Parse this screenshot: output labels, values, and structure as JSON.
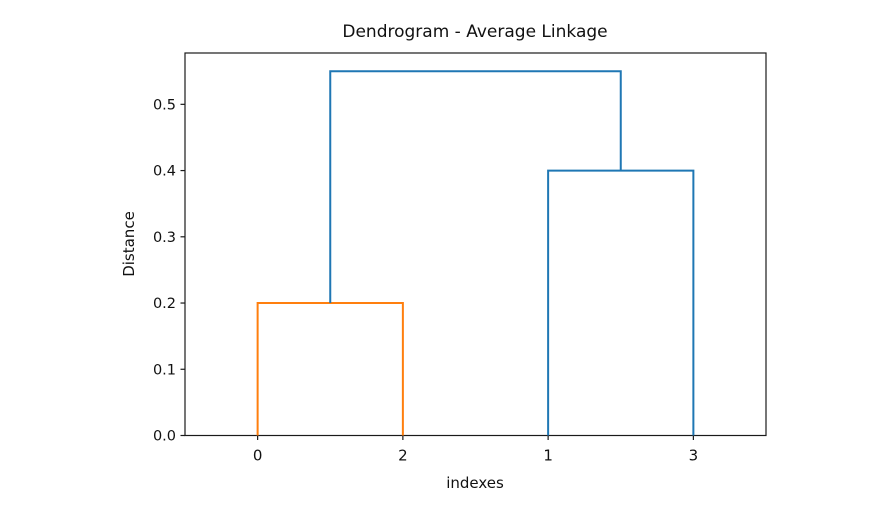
{
  "figure": {
    "background": "#ffffff"
  },
  "chart_data": {
    "type": "dendrogram",
    "title": "Dendrogram - Average Linkage",
    "xlabel": "indexes",
    "ylabel": "Distance",
    "xlim": [
      0,
      40
    ],
    "ylim": [
      0,
      0.5775
    ],
    "grid": false,
    "legend": null,
    "yticks": {
      "values": [
        0.0,
        0.1,
        0.2,
        0.3,
        0.4,
        0.5
      ],
      "labels": [
        "0.0",
        "0.1",
        "0.2",
        "0.3",
        "0.4",
        "0.5"
      ]
    },
    "leaves": [
      {
        "label": "0",
        "x": 5
      },
      {
        "label": "2",
        "x": 15
      },
      {
        "label": "1",
        "x": 25
      },
      {
        "label": "3",
        "x": 35
      }
    ],
    "links": [
      {
        "name": "cluster-0-2",
        "color": "#ff7f0e",
        "x1": 5,
        "h1": 0.0,
        "x2": 15,
        "h2": 0.0,
        "height": 0.2
      },
      {
        "name": "cluster-1-3",
        "color": "#1f77b4",
        "x1": 25,
        "h1": 0.0,
        "x2": 35,
        "h2": 0.0,
        "height": 0.4
      },
      {
        "name": "root-link",
        "color": "#1f77b4",
        "x1": 10,
        "h1": 0.2,
        "x2": 30,
        "h2": 0.4,
        "height": 0.55
      }
    ],
    "colors": {
      "cluster_orange": "#ff7f0e",
      "cluster_blue": "#1f77b4",
      "spine": "#1a1a1a",
      "text": "#111111"
    }
  }
}
